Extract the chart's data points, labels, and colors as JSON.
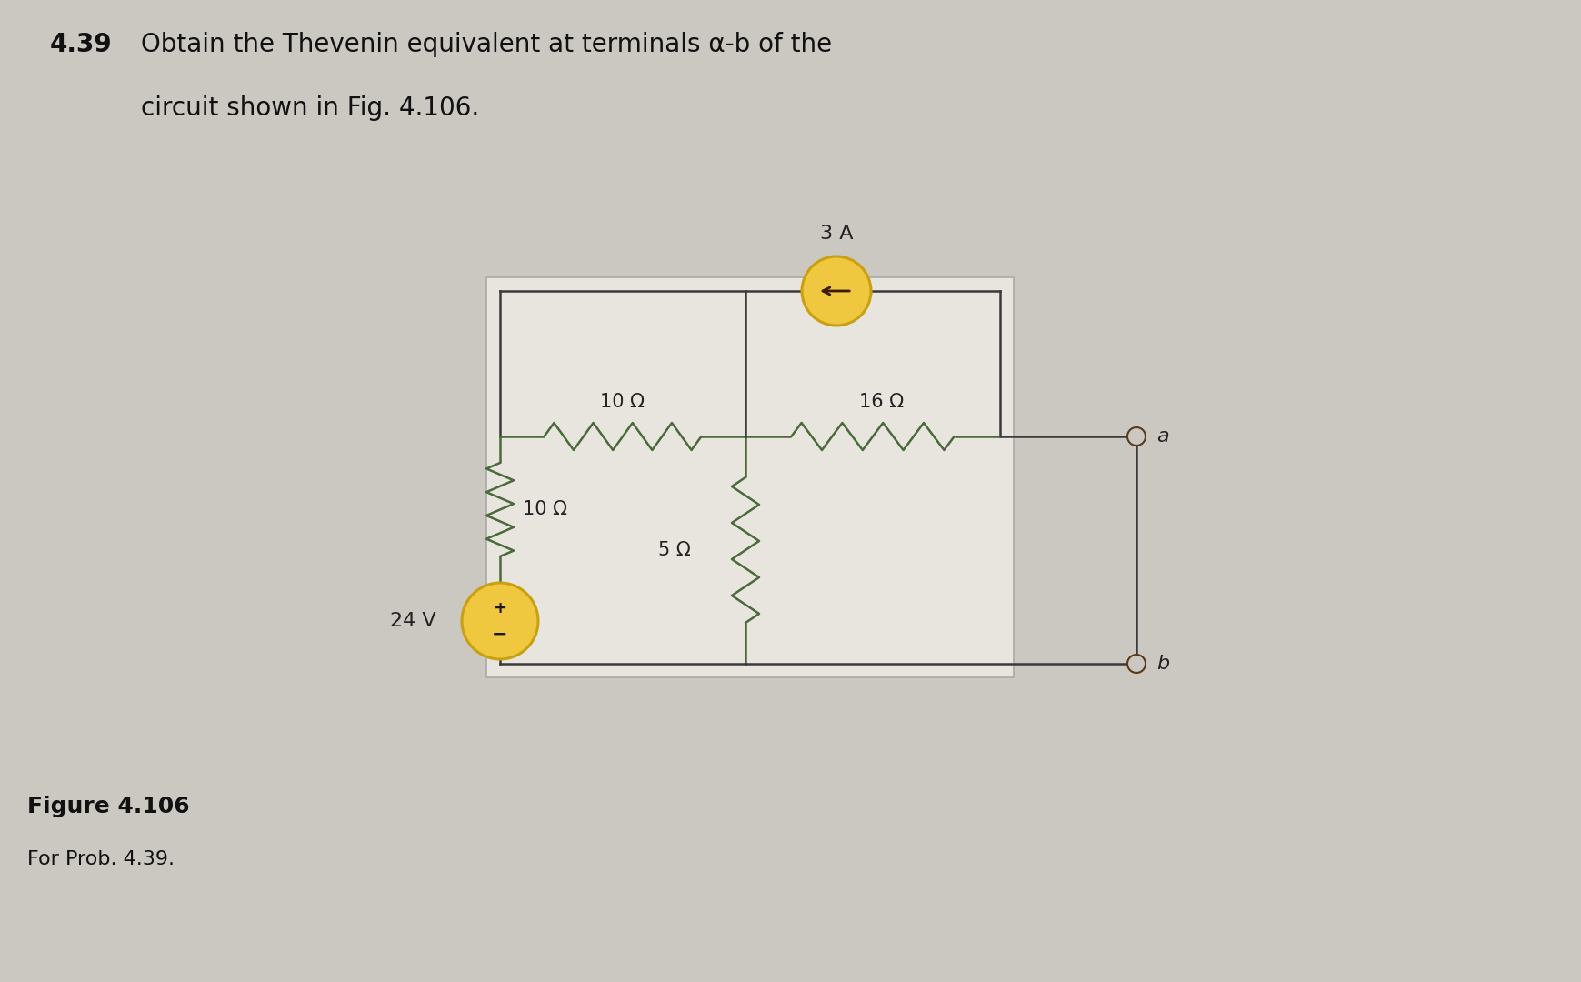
{
  "title_num": "4.39",
  "title_line1": "Obtain the Thevenin equivalent at terminals α-b of the",
  "title_line2": "circuit shown in Fig. 4.106.",
  "figure_label": "Figure 4.106",
  "figure_sublabel": "For Prob. 4.39.",
  "bg_color": "#cbc8c2",
  "inner_bg": "#dedad4",
  "R1_label": "10 Ω",
  "R2_label": "10 Ω",
  "R3_label": "16 Ω",
  "R4_label": "5 Ω",
  "VS_label": "24 V",
  "IS_label": "3 A",
  "terminal_a": "a",
  "terminal_b": "b",
  "wire_color": "#3a3a3a",
  "resistor_color": "#4a6a3a",
  "source_fill": "#f0c840",
  "source_edge": "#c8a010",
  "label_color": "#222222",
  "terminal_color": "#4a3a2a"
}
